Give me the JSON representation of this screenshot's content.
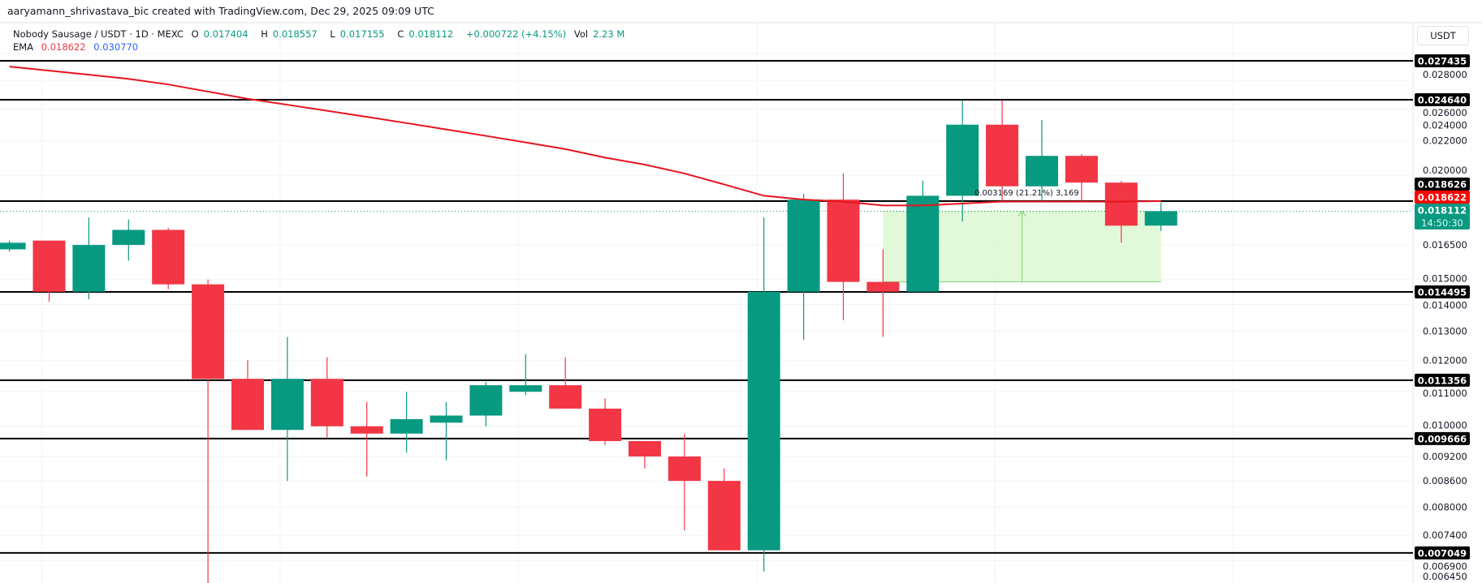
{
  "credit": "aaryamann_shrivastava_bic created with TradingView.com, Dec 29, 2025 09:09 UTC",
  "legend": {
    "symbol": "Nobody Sausage / USDT · 1D · MEXC",
    "open_label": "O",
    "open": "0.017404",
    "high_label": "H",
    "high": "0.018557",
    "low_label": "L",
    "low": "0.017155",
    "close_label": "C",
    "close": "0.018112",
    "change": "+0.000722 (+4.15%)",
    "vol_label": "Vol",
    "vol": "2.23 M",
    "ema_label": "EMA",
    "ema_value_1": "0.018622",
    "ema_value_2": "0.030770"
  },
  "axis_unit": "USDT",
  "countdown": "14:50:30",
  "measure_label": "0.003169 (21.21%) 3,169",
  "colors": {
    "up": "#089981",
    "down": "#f23645",
    "ema": "#e8141e",
    "ema2": "#2962ff",
    "level": "#000000",
    "measure_fill": "#d9f7cf",
    "measure_line": "#7bd96a"
  },
  "chart_data": {
    "type": "candlestick",
    "y_scale": "log",
    "ylim": [
      0.00645,
      0.0285
    ],
    "grid": true,
    "y_ticks": [
      "0.028000",
      "0.026000",
      "0.024000",
      "0.022000",
      "0.020000",
      "0.016500",
      "0.015000",
      "0.014000",
      "0.013000",
      "0.012000",
      "0.011000",
      "0.010000",
      "0.009200",
      "0.008600",
      "0.008000",
      "0.007400",
      "0.006900",
      "0.006450"
    ],
    "candles": [
      {
        "o": 0.0163,
        "h": 0.0167,
        "l": 0.0162,
        "c": 0.0166
      },
      {
        "o": 0.0167,
        "h": 0.0167,
        "l": 0.0141,
        "c": 0.0145
      },
      {
        "o": 0.0145,
        "h": 0.0178,
        "l": 0.0142,
        "c": 0.0165
      },
      {
        "o": 0.0165,
        "h": 0.0177,
        "l": 0.0158,
        "c": 0.0172
      },
      {
        "o": 0.0172,
        "h": 0.0173,
        "l": 0.0146,
        "c": 0.0148
      },
      {
        "o": 0.0148,
        "h": 0.015,
        "l": 0.0062,
        "c": 0.0114
      },
      {
        "o": 0.0114,
        "h": 0.012,
        "l": 0.0099,
        "c": 0.0099
      },
      {
        "o": 0.0099,
        "h": 0.0128,
        "l": 0.0086,
        "c": 0.0114
      },
      {
        "o": 0.0114,
        "h": 0.0121,
        "l": 0.0097,
        "c": 0.01
      },
      {
        "o": 0.01,
        "h": 0.0107,
        "l": 0.0087,
        "c": 0.0098
      },
      {
        "o": 0.0098,
        "h": 0.011,
        "l": 0.0093,
        "c": 0.0102
      },
      {
        "o": 0.0101,
        "h": 0.0107,
        "l": 0.0091,
        "c": 0.0103
      },
      {
        "o": 0.0103,
        "h": 0.0113,
        "l": 0.01,
        "c": 0.0112
      },
      {
        "o": 0.011,
        "h": 0.0122,
        "l": 0.0109,
        "c": 0.0112
      },
      {
        "o": 0.0112,
        "h": 0.0121,
        "l": 0.0105,
        "c": 0.0105
      },
      {
        "o": 0.0105,
        "h": 0.0108,
        "l": 0.0095,
        "c": 0.0096
      },
      {
        "o": 0.0096,
        "h": 0.0096,
        "l": 0.0089,
        "c": 0.0092
      },
      {
        "o": 0.0092,
        "h": 0.0098,
        "l": 0.0075,
        "c": 0.0086
      },
      {
        "o": 0.0086,
        "h": 0.0089,
        "l": 0.0071,
        "c": 0.0071
      },
      {
        "o": 0.0071,
        "h": 0.0178,
        "l": 0.0067,
        "c": 0.0145
      },
      {
        "o": 0.0145,
        "h": 0.019,
        "l": 0.0127,
        "c": 0.0187
      },
      {
        "o": 0.0187,
        "h": 0.0201,
        "l": 0.0134,
        "c": 0.0149
      },
      {
        "o": 0.0149,
        "h": 0.0163,
        "l": 0.0128,
        "c": 0.0145
      },
      {
        "o": 0.0145,
        "h": 0.0197,
        "l": 0.0145,
        "c": 0.0189
      },
      {
        "o": 0.0189,
        "h": 0.0246,
        "l": 0.0176,
        "c": 0.023
      },
      {
        "o": 0.023,
        "h": 0.0246,
        "l": 0.0186,
        "c": 0.0194
      },
      {
        "o": 0.0194,
        "h": 0.0233,
        "l": 0.0186,
        "c": 0.0211
      },
      {
        "o": 0.0211,
        "h": 0.0212,
        "l": 0.0186,
        "c": 0.0196
      },
      {
        "o": 0.0196,
        "h": 0.0197,
        "l": 0.0166,
        "c": 0.0174
      },
      {
        "o": 0.017404,
        "h": 0.018557,
        "l": 0.017155,
        "c": 0.018112
      }
    ],
    "ema": [
      0.027,
      0.0267,
      0.0264,
      0.0261,
      0.0257,
      0.0252,
      0.0247,
      0.0243,
      0.0239,
      0.0235,
      0.0231,
      0.0227,
      0.0223,
      0.0219,
      0.0215,
      0.021,
      0.0206,
      0.0201,
      0.0195,
      0.0189,
      0.0187,
      0.0186,
      0.0184,
      0.0184,
      0.0185,
      0.0186,
      0.0186,
      0.0186,
      0.0186,
      0.018622
    ],
    "levels": [
      "0.027435",
      "0.024640",
      "0.018626",
      "0.014495",
      "0.011356",
      "0.009666",
      "0.007049"
    ],
    "ema_label_value": "0.018622",
    "last_price": "0.018112",
    "measure": {
      "from_candle": 22,
      "to_candle": 29,
      "low": 0.0149,
      "high": 0.0181
    }
  }
}
